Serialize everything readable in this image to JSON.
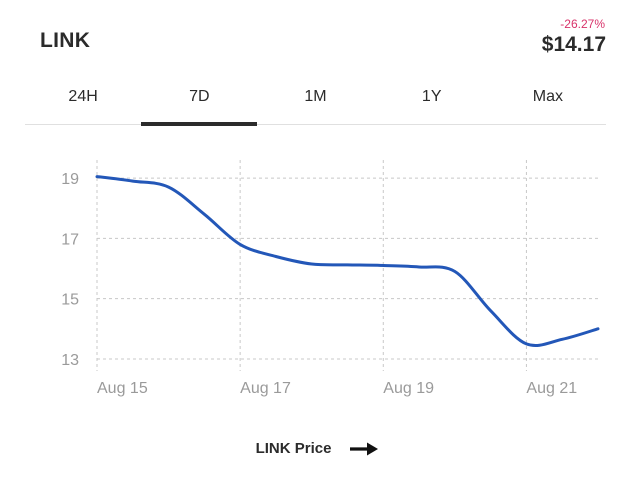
{
  "header": {
    "title": "LINK",
    "change": "-26.27%",
    "price": "$14.17"
  },
  "tabs": [
    {
      "label": "24H",
      "active": false
    },
    {
      "label": "7D",
      "active": true
    },
    {
      "label": "1M",
      "active": false
    },
    {
      "label": "1Y",
      "active": false
    },
    {
      "label": "Max",
      "active": false
    }
  ],
  "legend": {
    "label": "LINK Price",
    "icon": "arrow-right-icon"
  },
  "colors": {
    "line": "#2357b8",
    "change": "#d8336a",
    "grid": "#c8c8c8",
    "tick_text": "#9a9a9a"
  },
  "chart_data": {
    "type": "line",
    "title": "",
    "xlabel": "",
    "ylabel": "",
    "x_ticks": [
      "Aug 15",
      "Aug 17",
      "Aug 19",
      "Aug 21"
    ],
    "y_ticks": [
      13,
      15,
      17,
      19
    ],
    "ylim": [
      12.6,
      19.6
    ],
    "xlim": [
      "2023-08-15",
      "2023-08-22"
    ],
    "grid": true,
    "series": [
      {
        "name": "",
        "points": [
          {
            "x": "2023-08-15",
            "y": 19.05
          },
          {
            "x": "2023-08-15T12:00",
            "y": 18.9
          },
          {
            "x": "2023-08-16",
            "y": 18.7
          },
          {
            "x": "2023-08-16T12:00",
            "y": 17.8
          },
          {
            "x": "2023-08-17",
            "y": 16.8
          },
          {
            "x": "2023-08-17T12:00",
            "y": 16.4
          },
          {
            "x": "2023-08-18",
            "y": 16.15
          },
          {
            "x": "2023-08-18T12:00",
            "y": 16.12
          },
          {
            "x": "2023-08-19",
            "y": 16.1
          },
          {
            "x": "2023-08-19T12:00",
            "y": 16.05
          },
          {
            "x": "2023-08-20",
            "y": 15.9
          },
          {
            "x": "2023-08-20T12:00",
            "y": 14.6
          },
          {
            "x": "2023-08-21",
            "y": 13.5
          },
          {
            "x": "2023-08-21T12:00",
            "y": 13.65
          },
          {
            "x": "2023-08-22",
            "y": 14.0
          }
        ]
      }
    ]
  }
}
